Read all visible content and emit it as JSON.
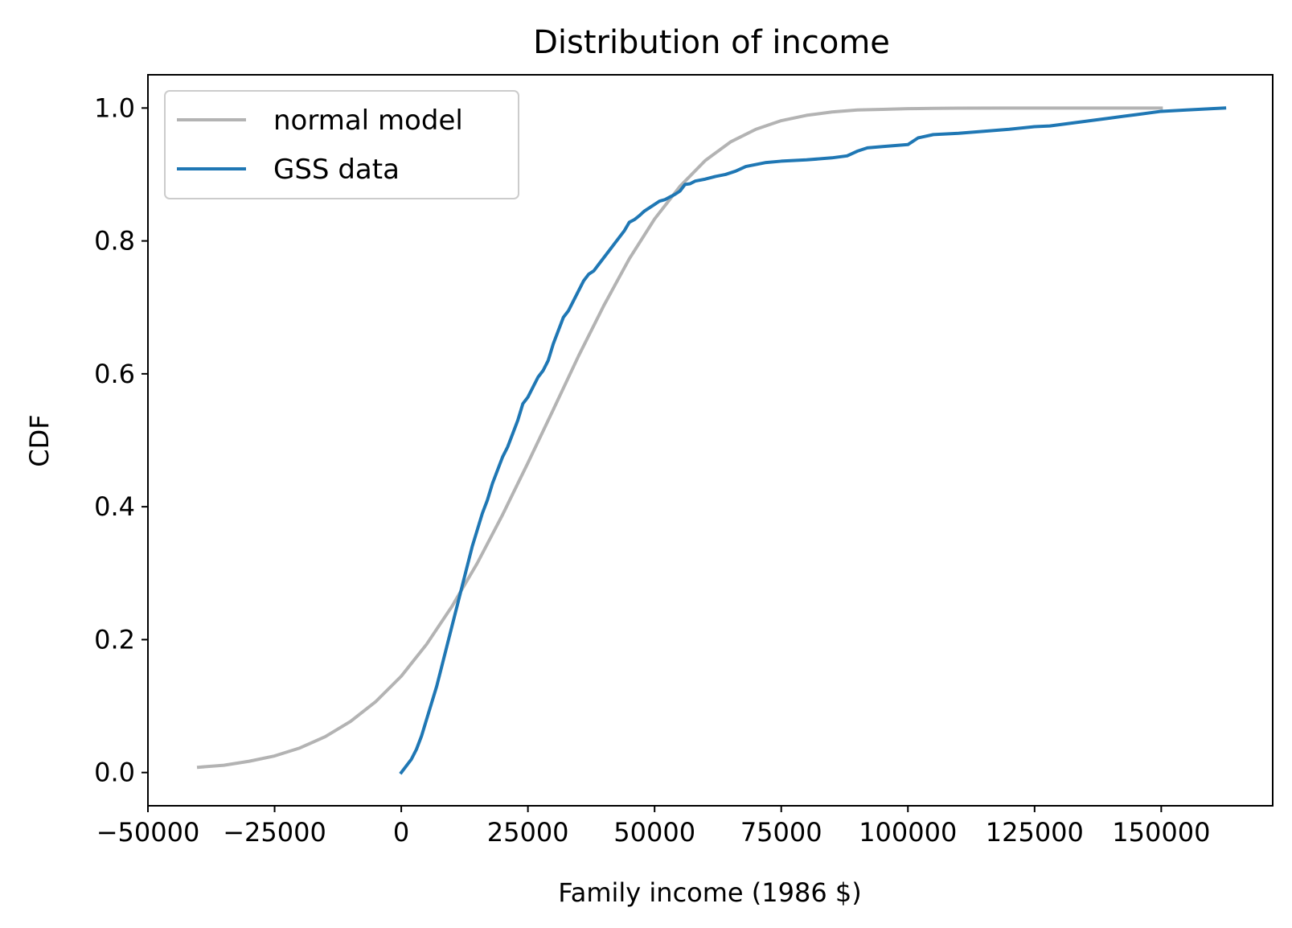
{
  "chart_data": {
    "type": "line",
    "title": "Distribution of income",
    "xlabel": "Family income (1986 $)",
    "ylabel": "CDF",
    "xlim": [
      -50000,
      172000
    ],
    "ylim": [
      -0.05,
      1.05
    ],
    "xticks": [
      -50000,
      -25000,
      0,
      25000,
      50000,
      75000,
      100000,
      125000,
      150000
    ],
    "xtick_labels": [
      "−50000",
      "−25000",
      "0",
      "25000",
      "50000",
      "75000",
      "100000",
      "125000",
      "150000"
    ],
    "yticks": [
      0.0,
      0.2,
      0.4,
      0.6,
      0.8,
      1.0
    ],
    "ytick_labels": [
      "0.0",
      "0.2",
      "0.4",
      "0.6",
      "0.8",
      "1.0"
    ],
    "legend_position": "top-left",
    "grid": false,
    "series": [
      {
        "name": "normal model",
        "color": "#b3b3b3",
        "x": [
          -40000,
          -35000,
          -30000,
          -25000,
          -20000,
          -15000,
          -10000,
          -5000,
          0,
          5000,
          10000,
          15000,
          20000,
          25000,
          30000,
          35000,
          40000,
          45000,
          50000,
          55000,
          60000,
          65000,
          70000,
          75000,
          80000,
          85000,
          90000,
          95000,
          100000,
          105000,
          110000,
          120000,
          130000,
          140000,
          150000
        ],
        "y": [
          0.008,
          0.011,
          0.017,
          0.025,
          0.037,
          0.054,
          0.077,
          0.107,
          0.145,
          0.193,
          0.25,
          0.315,
          0.388,
          0.466,
          0.546,
          0.627,
          0.703,
          0.773,
          0.833,
          0.882,
          0.921,
          0.949,
          0.968,
          0.981,
          0.989,
          0.994,
          0.997,
          0.998,
          0.999,
          0.9995,
          0.9998,
          1.0,
          1.0,
          1.0,
          1.0
        ]
      },
      {
        "name": "GSS data",
        "color": "#1f77b4",
        "x": [
          0,
          1000,
          2000,
          3000,
          4000,
          5000,
          6000,
          7000,
          8000,
          9000,
          10000,
          11000,
          12000,
          13000,
          14000,
          15000,
          16000,
          17000,
          18000,
          19000,
          20000,
          21000,
          22000,
          23000,
          24000,
          25000,
          26000,
          27000,
          28000,
          29000,
          30000,
          31000,
          32000,
          33000,
          34000,
          35000,
          36000,
          37000,
          38000,
          39000,
          40000,
          41000,
          42000,
          43000,
          44000,
          45000,
          46000,
          47000,
          48000,
          49000,
          50000,
          51000,
          52000,
          53000,
          54000,
          55000,
          56000,
          57000,
          58000,
          60000,
          62000,
          64000,
          66000,
          68000,
          70000,
          72000,
          75000,
          80000,
          85000,
          88000,
          90000,
          92000,
          95000,
          100000,
          102000,
          105000,
          110000,
          115000,
          120000,
          125000,
          128000,
          130000,
          135000,
          140000,
          145000,
          150000,
          155000,
          160000,
          162500
        ],
        "y": [
          0.0,
          0.01,
          0.02,
          0.035,
          0.055,
          0.08,
          0.105,
          0.13,
          0.16,
          0.19,
          0.22,
          0.25,
          0.28,
          0.31,
          0.34,
          0.365,
          0.39,
          0.41,
          0.435,
          0.455,
          0.475,
          0.49,
          0.51,
          0.53,
          0.555,
          0.565,
          0.58,
          0.595,
          0.605,
          0.62,
          0.645,
          0.665,
          0.685,
          0.695,
          0.71,
          0.725,
          0.74,
          0.75,
          0.755,
          0.765,
          0.775,
          0.785,
          0.795,
          0.805,
          0.815,
          0.828,
          0.832,
          0.838,
          0.845,
          0.85,
          0.855,
          0.86,
          0.862,
          0.866,
          0.87,
          0.875,
          0.885,
          0.886,
          0.89,
          0.893,
          0.897,
          0.9,
          0.905,
          0.912,
          0.915,
          0.918,
          0.92,
          0.922,
          0.925,
          0.928,
          0.935,
          0.94,
          0.942,
          0.945,
          0.955,
          0.96,
          0.962,
          0.965,
          0.968,
          0.972,
          0.973,
          0.975,
          0.98,
          0.985,
          0.99,
          0.995,
          0.997,
          0.999,
          1.0
        ]
      }
    ]
  }
}
